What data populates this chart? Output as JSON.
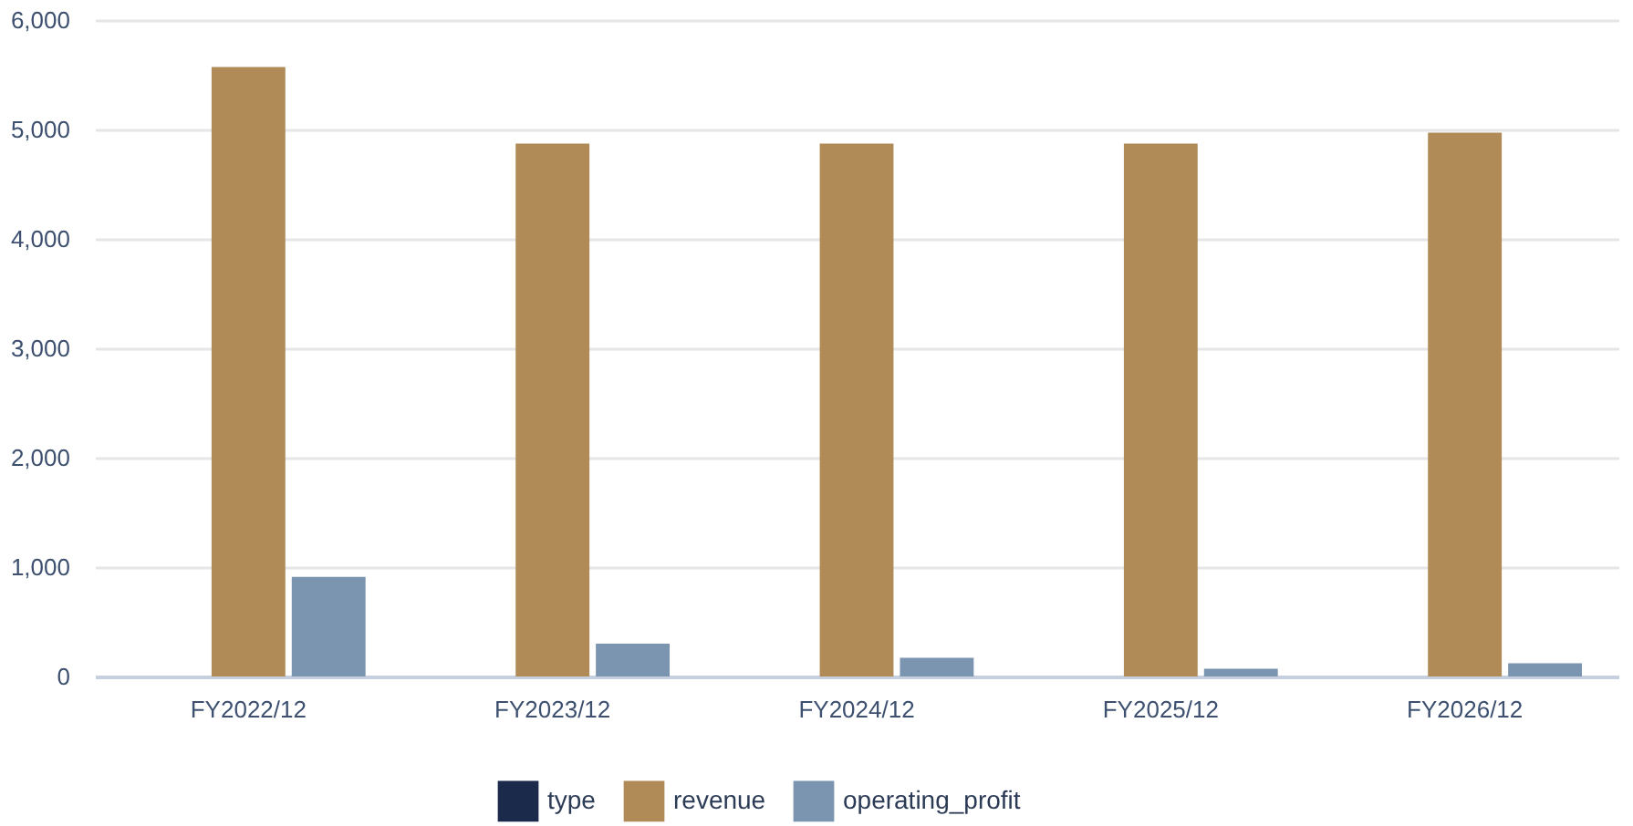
{
  "chart_data": {
    "type": "bar",
    "categories": [
      "FY2022/12",
      "FY2023/12",
      "FY2024/12",
      "FY2025/12",
      "FY2026/12"
    ],
    "series": [
      {
        "name": "type",
        "color": "#1b2a4a",
        "values": [
          0,
          0,
          0,
          0,
          0
        ]
      },
      {
        "name": "revenue",
        "color": "#b08b57",
        "values": [
          5570,
          4870,
          4870,
          4870,
          4970
        ]
      },
      {
        "name": "operating_profit",
        "color": "#7b95b0",
        "values": [
          910,
          300,
          170,
          70,
          120
        ]
      }
    ],
    "ylim": [
      0,
      6000
    ],
    "yticks": [
      0,
      {
        "value": 1000,
        "label": "1,000"
      },
      {
        "value": 2000,
        "label": "2,000"
      },
      {
        "value": 3000,
        "label": "3,000"
      },
      {
        "value": 4000,
        "label": "4,000"
      },
      {
        "value": 5000,
        "label": "5,000"
      },
      {
        "value": 6000,
        "label": "6,000"
      }
    ],
    "grid": "y",
    "legend": "bottom"
  }
}
